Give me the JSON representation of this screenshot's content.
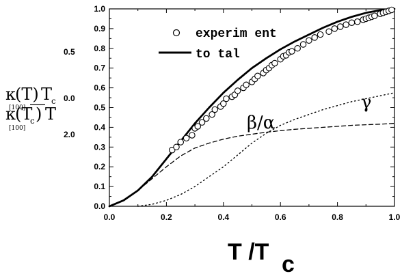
{
  "chart_data": {
    "type": "scatter",
    "title": "",
    "xlim": [
      0.0,
      1.0
    ],
    "ylim": [
      0.0,
      1.0
    ],
    "xticks": [
      "0.0",
      "0.2",
      "0.4",
      "0.6",
      "0.8",
      "1.0"
    ],
    "yticks": [
      "0.0",
      "0.1",
      "0.2",
      "0.3",
      "0.4",
      "0.5",
      "0.6",
      "0.7",
      "0.8",
      "0.9",
      "1.0"
    ],
    "xlabel": {
      "main": "T /T",
      "sub": "c"
    },
    "ylabel": {
      "k": "κ",
      "num_arg": "(T)",
      "num_trail": "T",
      "num_trail_sub": "c",
      "dir": "[100]",
      "den_arg": "(T",
      "den_arg_sub": "c",
      "den_close": ")",
      "den_trail": "T"
    },
    "stray_labels": [
      "0.5",
      "0.0",
      "2.0"
    ],
    "legend": {
      "position": "top-center",
      "experiment": "experim ent",
      "total": "to tal"
    },
    "annotations": {
      "gamma": "γ",
      "beta_alpha": "β/α"
    },
    "series": [
      {
        "name": "experim ent",
        "style": "open-circle",
        "x": [
          0.22,
          0.235,
          0.25,
          0.27,
          0.29,
          0.3,
          0.31,
          0.325,
          0.34,
          0.36,
          0.37,
          0.39,
          0.4,
          0.41,
          0.43,
          0.44,
          0.45,
          0.47,
          0.48,
          0.5,
          0.51,
          0.52,
          0.54,
          0.55,
          0.56,
          0.57,
          0.58,
          0.6,
          0.61,
          0.62,
          0.63,
          0.64,
          0.66,
          0.68,
          0.7,
          0.72,
          0.74,
          0.77,
          0.79,
          0.81,
          0.83,
          0.85,
          0.87,
          0.89,
          0.9,
          0.91,
          0.92,
          0.93,
          0.95,
          0.96,
          0.97,
          0.98,
          0.99
        ],
        "y": [
          0.285,
          0.3,
          0.325,
          0.345,
          0.36,
          0.395,
          0.405,
          0.425,
          0.445,
          0.465,
          0.49,
          0.505,
          0.52,
          0.545,
          0.555,
          0.565,
          0.585,
          0.6,
          0.615,
          0.63,
          0.645,
          0.66,
          0.675,
          0.69,
          0.7,
          0.715,
          0.725,
          0.745,
          0.76,
          0.765,
          0.78,
          0.785,
          0.8,
          0.82,
          0.84,
          0.855,
          0.87,
          0.885,
          0.9,
          0.91,
          0.92,
          0.93,
          0.935,
          0.945,
          0.95,
          0.955,
          0.96,
          0.965,
          0.975,
          0.98,
          0.985,
          0.99,
          0.995
        ]
      },
      {
        "name": "to tal",
        "style": "solid",
        "x": [
          0.0,
          0.05,
          0.1,
          0.15,
          0.2,
          0.25,
          0.3,
          0.35,
          0.4,
          0.45,
          0.5,
          0.55,
          0.6,
          0.65,
          0.7,
          0.75,
          0.8,
          0.85,
          0.9,
          0.95,
          1.0
        ],
        "y": [
          0.0,
          0.03,
          0.08,
          0.15,
          0.24,
          0.33,
          0.42,
          0.5,
          0.575,
          0.64,
          0.7,
          0.75,
          0.795,
          0.835,
          0.87,
          0.905,
          0.935,
          0.96,
          0.98,
          0.993,
          1.0
        ]
      },
      {
        "name": "β/α",
        "style": "dashed",
        "x": [
          0.0,
          0.05,
          0.1,
          0.15,
          0.2,
          0.25,
          0.3,
          0.35,
          0.4,
          0.45,
          0.5,
          0.55,
          0.6,
          0.65,
          0.7,
          0.75,
          0.8,
          0.85,
          0.9,
          0.95,
          1.0
        ],
        "y": [
          0.0,
          0.03,
          0.08,
          0.14,
          0.2,
          0.255,
          0.295,
          0.32,
          0.34,
          0.355,
          0.365,
          0.375,
          0.383,
          0.39,
          0.395,
          0.4,
          0.405,
          0.41,
          0.413,
          0.416,
          0.42
        ]
      },
      {
        "name": "γ",
        "style": "dotted",
        "x": [
          0.1,
          0.15,
          0.2,
          0.25,
          0.3,
          0.35,
          0.4,
          0.45,
          0.5,
          0.55,
          0.6,
          0.65,
          0.7,
          0.75,
          0.8,
          0.85,
          0.9,
          0.95,
          1.0
        ],
        "y": [
          0.0,
          0.01,
          0.03,
          0.06,
          0.1,
          0.15,
          0.2,
          0.26,
          0.32,
          0.37,
          0.41,
          0.44,
          0.465,
          0.49,
          0.51,
          0.53,
          0.545,
          0.56,
          0.575
        ]
      }
    ]
  }
}
